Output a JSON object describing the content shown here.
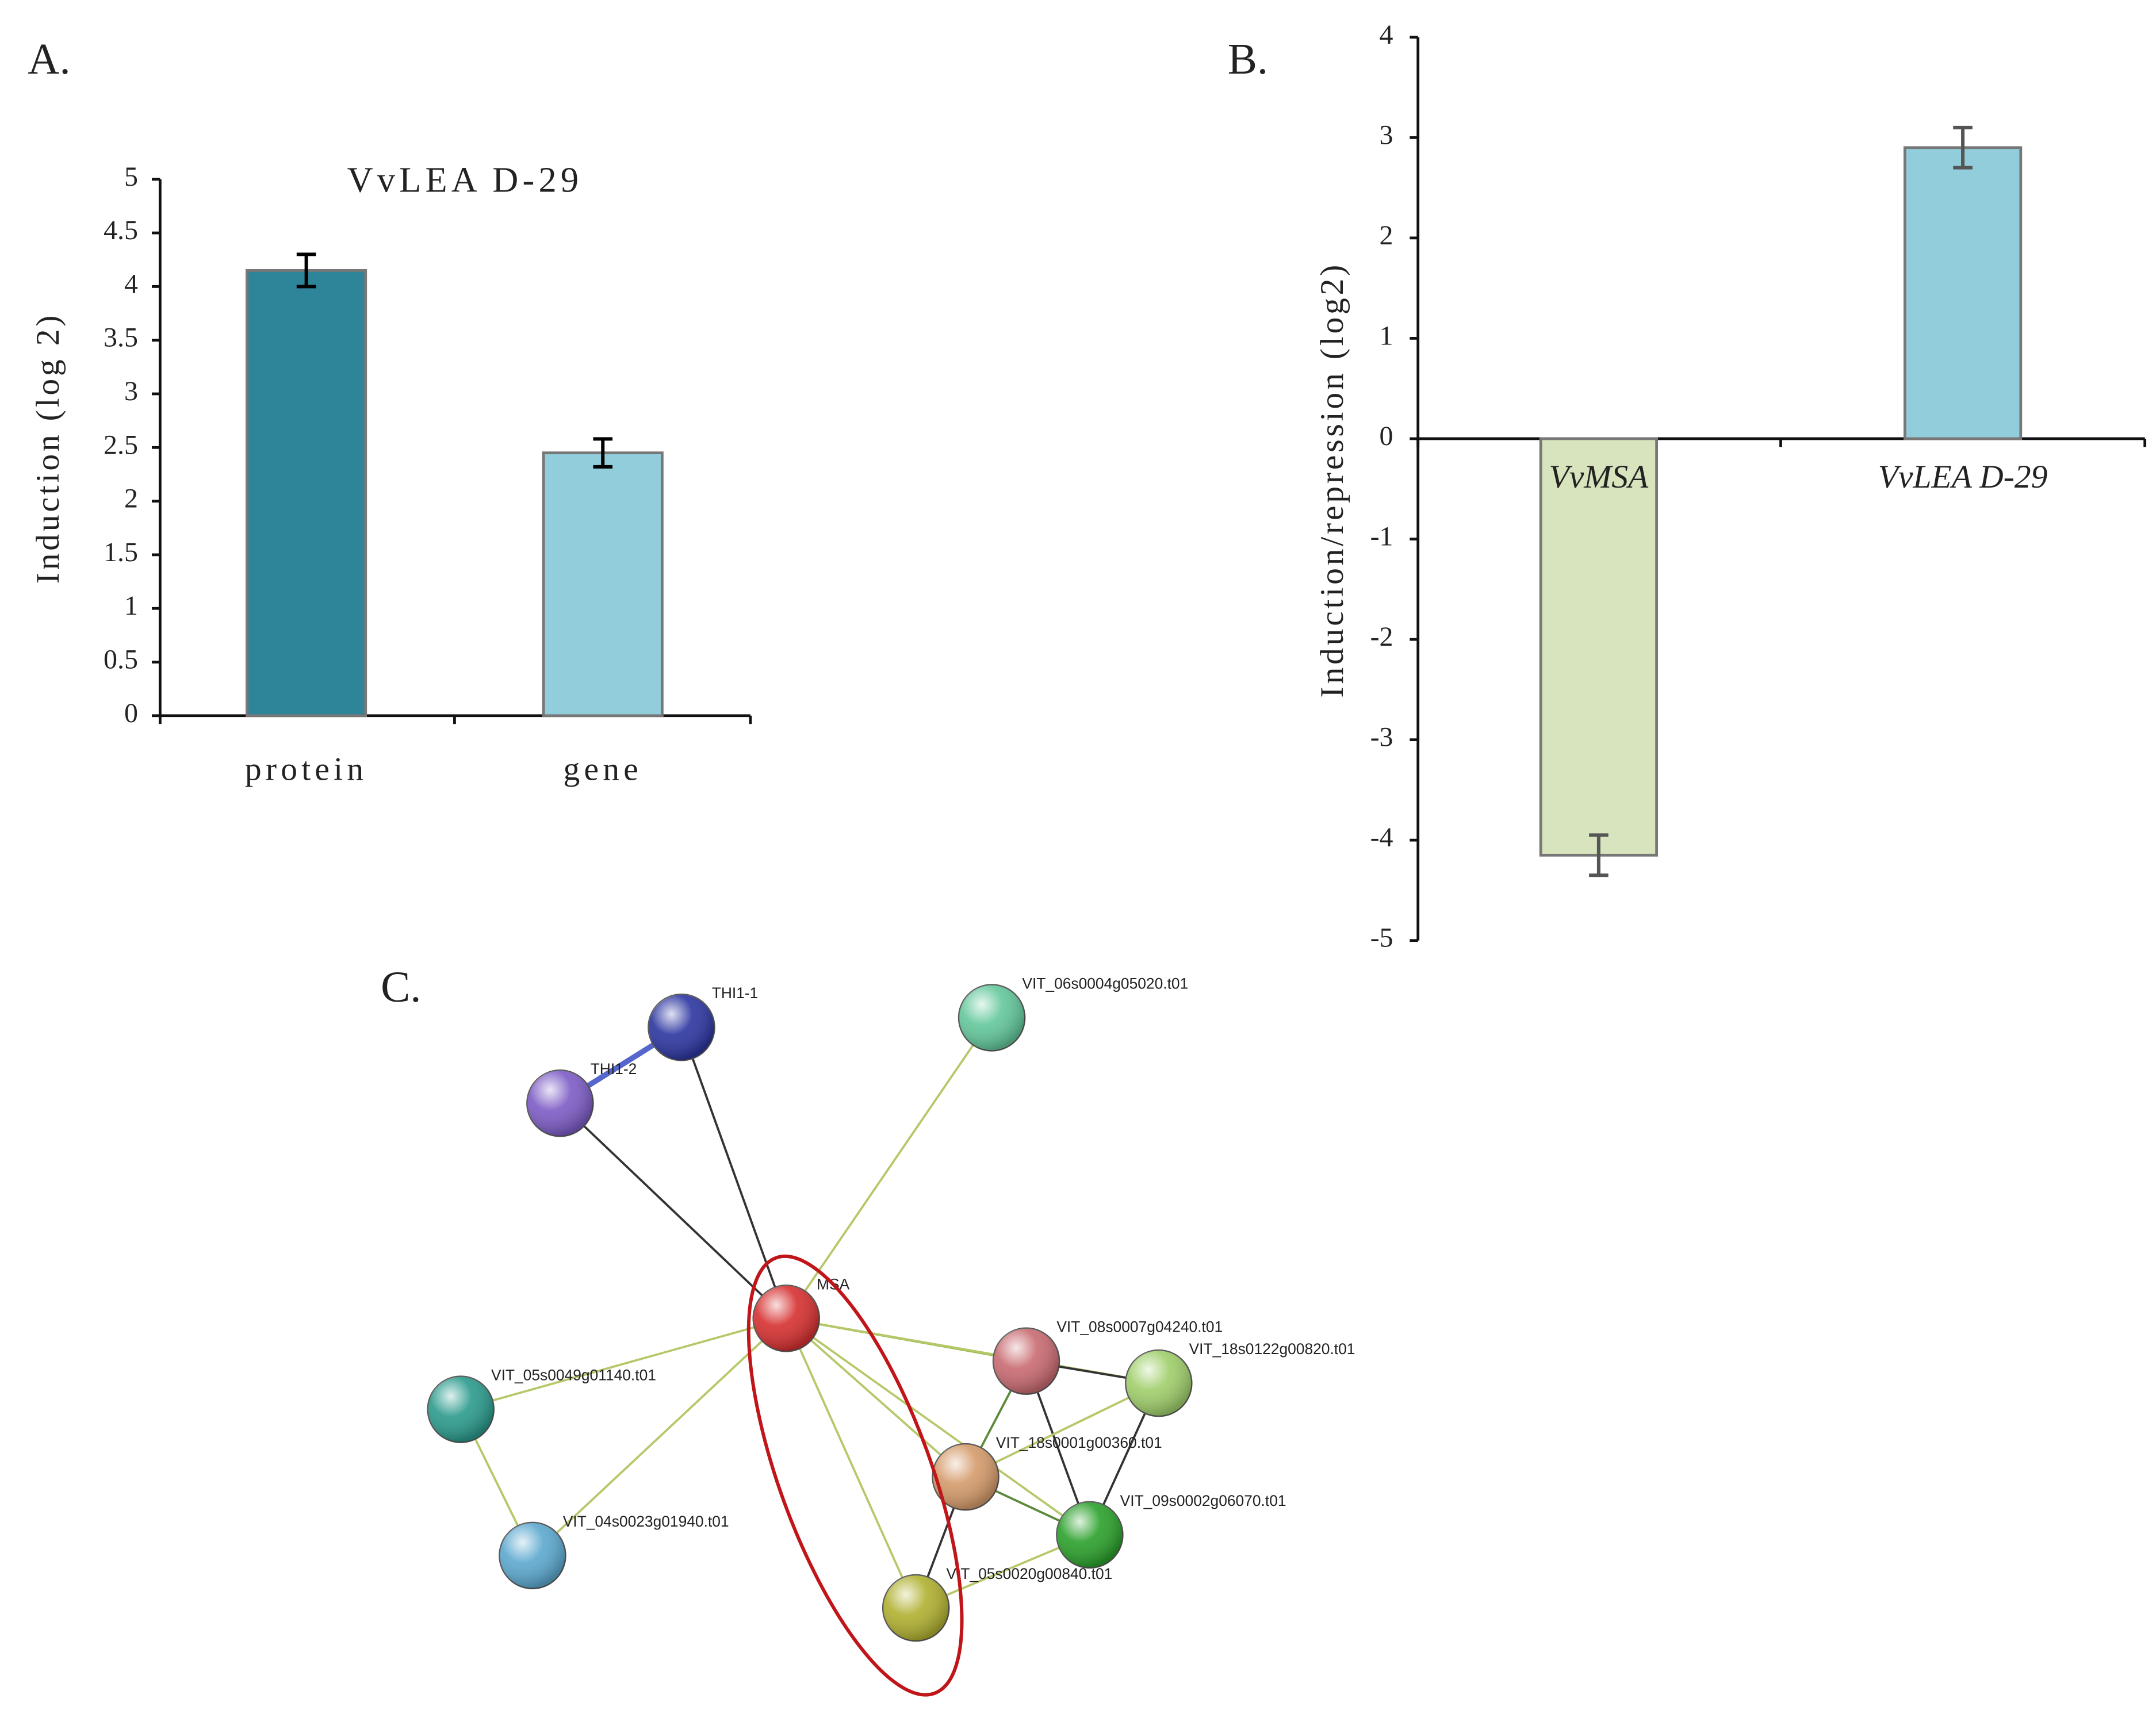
{
  "panel_labels": [
    "A.",
    "B.",
    "C."
  ],
  "chart_data": [
    {
      "type": "bar",
      "title": "VvLEA D-29",
      "y_label": "Induction (log 2)",
      "categories": [
        "protein",
        "gene"
      ],
      "values": [
        4.15,
        2.45
      ],
      "errors": [
        0.15,
        0.13
      ],
      "colors": [
        "#2e8499",
        "#92cddc"
      ],
      "ylim": [
        0,
        5
      ],
      "yticks": [
        0,
        0.5,
        1,
        1.5,
        2,
        2.5,
        3,
        3.5,
        4,
        4.5,
        5
      ]
    },
    {
      "type": "bar",
      "y_label": "Induction/repression (log2)",
      "categories": [
        "VvMSA",
        "VvLEA D-29"
      ],
      "values": [
        -4.15,
        2.9
      ],
      "errors": [
        0.2,
        0.2
      ],
      "colors": [
        "#d7e4bd",
        "#92cddc"
      ],
      "ylim": [
        -5,
        4
      ],
      "yticks": [
        -5,
        -4,
        -3,
        -2,
        -1,
        0,
        1,
        2,
        3,
        4
      ]
    }
  ],
  "network": {
    "nodes": [
      {
        "label": "THI1-1",
        "color": "#2b35a0"
      },
      {
        "label": "THI1-2",
        "color": "#7c5bc5"
      },
      {
        "label": "VIT_06s0004g05020.t01",
        "color": "#62c79a"
      },
      {
        "label": "MSA",
        "color": "#d62f2f"
      },
      {
        "label": "VIT_08s0007g04240.t01",
        "color": "#c86a70"
      },
      {
        "label": "VIT_18s0122g00820.t01",
        "color": "#9fce6a"
      },
      {
        "label": "VIT_05s0049g01140.t01",
        "color": "#2a9a8c"
      },
      {
        "label": "VIT_18s0001g00360.t01",
        "color": "#d49a6a"
      },
      {
        "label": "VIT_09s0002g06070.t01",
        "color": "#2aa02a"
      },
      {
        "label": "VIT_04s0023g01940.t01",
        "color": "#5ba8cf"
      },
      {
        "label": "VIT_05s0020g00840.t01",
        "color": "#b0b030"
      }
    ]
  }
}
